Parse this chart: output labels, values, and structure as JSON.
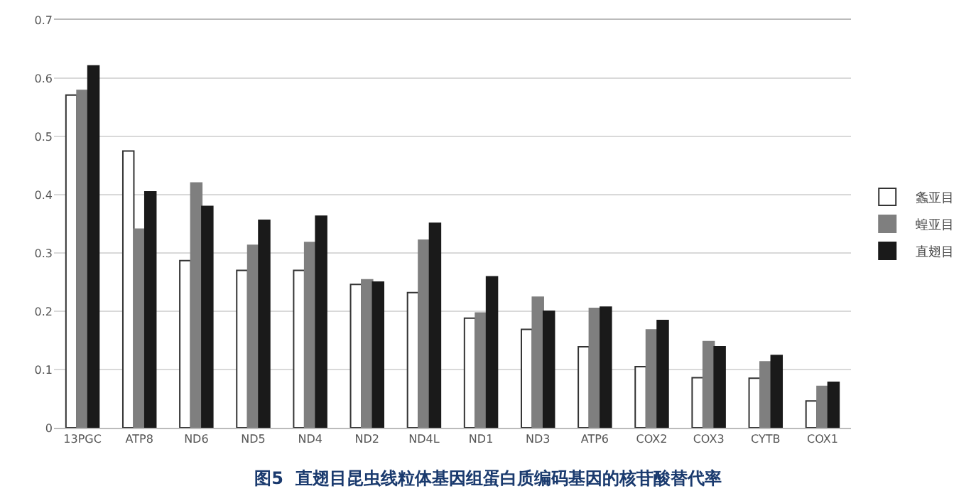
{
  "chart_data": {
    "type": "bar",
    "title": "图5  直翅目昆虫线粒体基因组蛋白质编码基因的核苷酸替代率",
    "categories": [
      "13PGC",
      "ATP8",
      "ND6",
      "ND5",
      "ND4",
      "ND2",
      "ND4L",
      "ND1",
      "ND3",
      "ATP6",
      "COX2",
      "COX3",
      "CYTB",
      "COX1"
    ],
    "series": [
      {
        "name": "螽亚目",
        "color": "#ffffff",
        "values": [
          0.571,
          0.475,
          0.287,
          0.27,
          0.27,
          0.246,
          0.232,
          0.188,
          0.169,
          0.139,
          0.105,
          0.086,
          0.085,
          0.046
        ]
      },
      {
        "name": "蝗亚目",
        "color": "#7f7f7f",
        "values": [
          0.579,
          0.341,
          0.42,
          0.313,
          0.318,
          0.254,
          0.322,
          0.197,
          0.224,
          0.205,
          0.168,
          0.148,
          0.113,
          0.071
        ]
      },
      {
        "name": "直翅目",
        "color": "#1a1a1a",
        "values": [
          0.621,
          0.405,
          0.38,
          0.356,
          0.363,
          0.25,
          0.351,
          0.259,
          0.2,
          0.207,
          0.184,
          0.139,
          0.124,
          0.078
        ]
      }
    ],
    "ylim": [
      0,
      0.7
    ],
    "yticks": [
      0,
      0.1,
      0.2,
      0.3,
      0.4,
      0.5,
      0.6,
      0.7
    ],
    "grid": "y",
    "legend": "right"
  }
}
